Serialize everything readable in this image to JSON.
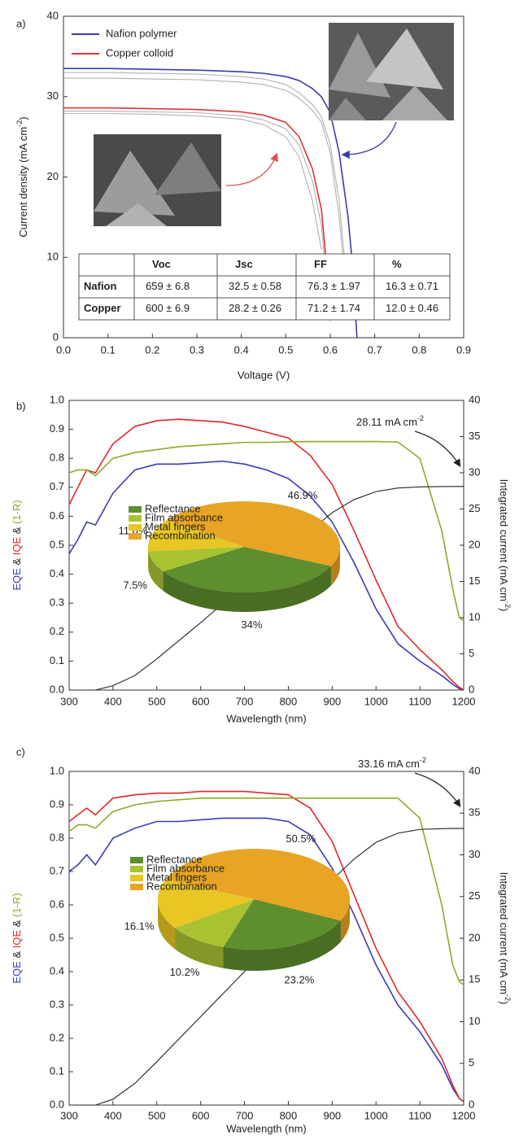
{
  "chart_data": [
    {
      "type": "line",
      "panel_label": "a)",
      "xlabel": "Voltage (V)",
      "ylabel": "Current density (mA cm",
      "ylabel_sup": "-2",
      "ylabel_end": ")",
      "x": [
        0,
        0.1,
        0.2,
        0.3,
        0.4,
        0.45,
        0.5,
        0.53,
        0.56,
        0.58,
        0.6,
        0.62,
        0.64,
        0.65,
        0.66
      ],
      "series": [
        {
          "color": "#b0b0b0",
          "values": [
            33,
            33,
            32.9,
            32.8,
            32.5,
            32.2,
            31.5,
            30.5,
            29,
            27.5,
            24,
            17,
            5,
            null,
            null
          ]
        },
        {
          "color": "#b0b0b0",
          "values": [
            32.3,
            32.3,
            32.2,
            32.1,
            31.8,
            31.5,
            30.8,
            29.8,
            28.3,
            26.8,
            23,
            15,
            3,
            null,
            null
          ]
        },
        {
          "color": "#b0b0b0",
          "values": [
            28.2,
            28.2,
            28.1,
            28,
            27.6,
            27.1,
            26,
            24,
            19.5,
            14,
            2,
            null,
            null,
            null,
            null
          ]
        },
        {
          "color": "#b0b0b0",
          "values": [
            27.9,
            27.9,
            27.8,
            27.6,
            27.2,
            26.5,
            25,
            22.5,
            17,
            11,
            null,
            null,
            null,
            null,
            null
          ]
        },
        {
          "name": "Nafion polymer",
          "color": "#3b3ba8",
          "values": [
            33.5,
            33.5,
            33.4,
            33.3,
            33.1,
            32.9,
            32.5,
            32,
            31,
            30,
            28,
            23,
            15,
            9,
            0
          ]
        },
        {
          "name": "Copper colloid",
          "color": "#e03434",
          "values": [
            28.6,
            28.6,
            28.5,
            28.4,
            28.1,
            27.7,
            26.8,
            25,
            21,
            16,
            4,
            null,
            null,
            null,
            null
          ]
        }
      ],
      "xlim": [
        0,
        0.9
      ],
      "xticks": [
        {
          "value": 0,
          "label": "0.0"
        },
        0.1,
        0.2,
        0.3,
        0.4,
        0.5,
        0.6,
        0.7,
        0.8,
        0.9
      ],
      "ylim": [
        0,
        40
      ],
      "yticks": [
        0,
        10,
        20,
        30,
        40
      ],
      "legend": "upper left",
      "table": {
        "columns": [
          "Voc",
          "Jsc",
          "FF",
          "%"
        ],
        "rows": [
          {
            "label": "Nafion",
            "cells": [
              "659 ± 6.8",
              "32.5 ± 0.58",
              "76.3 ± 1.97",
              "16.3 ± 0.71"
            ]
          },
          {
            "label": "Copper",
            "cells": [
              "600 ± 6.9",
              "28.2 ± 0.26",
              "71.2 ± 1.74",
              "12.0 ± 0.46"
            ]
          }
        ]
      }
    },
    {
      "type": "line",
      "panel_label": "b)",
      "xlabel": "Wavelength (nm)",
      "ylabel_sep": " & ",
      "y2label": "Integrated current (mA cm",
      "y2label_sup": "-2",
      "y2label_end": ")",
      "annotation": "28.11 mA cm",
      "annotation_sup": "-2",
      "x": [
        300,
        320,
        340,
        360,
        400,
        450,
        500,
        550,
        600,
        650,
        700,
        750,
        800,
        850,
        900,
        950,
        1000,
        1050,
        1100,
        1150,
        1175,
        1190,
        1200
      ],
      "series": [
        {
          "name": "EQE",
          "color": "#3b3bb8",
          "values": [
            0.47,
            0.52,
            0.58,
            0.57,
            0.68,
            0.76,
            0.78,
            0.78,
            0.785,
            0.79,
            0.78,
            0.76,
            0.73,
            0.67,
            0.58,
            0.44,
            0.28,
            0.16,
            0.1,
            0.05,
            0.02,
            0.005,
            0
          ]
        },
        {
          "name": "IQE",
          "color": "#e02828",
          "values": [
            0.64,
            0.7,
            0.76,
            0.75,
            0.85,
            0.91,
            0.93,
            0.935,
            0.93,
            0.925,
            0.91,
            0.89,
            0.87,
            0.81,
            0.71,
            0.55,
            0.38,
            0.22,
            0.14,
            0.07,
            0.03,
            0.01,
            0
          ]
        },
        {
          "name": "(1-R)",
          "color": "#8aac28",
          "values": [
            0.75,
            0.76,
            0.76,
            0.74,
            0.8,
            0.82,
            0.83,
            0.84,
            0.845,
            0.85,
            0.855,
            0.855,
            0.857,
            0.858,
            0.858,
            0.858,
            0.858,
            0.856,
            0.8,
            0.55,
            0.35,
            0.25,
            0.24
          ]
        },
        {
          "color": "#222222",
          "axis": "y2",
          "values": [
            0,
            0,
            0,
            0,
            0.6,
            2,
            4.3,
            6.8,
            9.3,
            11.9,
            14.5,
            17,
            19.5,
            22,
            24.5,
            26.3,
            27.4,
            27.9,
            28.05,
            28.1,
            28.11,
            28.11,
            28.11
          ]
        }
      ],
      "xlim": [
        300,
        1200
      ],
      "xticks": [
        300,
        400,
        500,
        600,
        700,
        800,
        900,
        1000,
        1100,
        1200
      ],
      "ylim": [
        0,
        1
      ],
      "yticks": [
        {
          "value": 0,
          "label": "0.0"
        },
        0.1,
        0.2,
        0.3,
        0.4,
        0.5,
        0.6,
        0.7,
        0.8,
        0.9,
        {
          "value": 1,
          "label": "1.0"
        }
      ],
      "y2lim": [
        0,
        40
      ],
      "y2ticks": [
        0,
        5,
        10,
        15,
        20,
        25,
        30,
        35,
        40
      ]
    },
    {
      "type": "pie",
      "categories": [
        "Reflectance",
        "Film absorbance",
        "Metal fingers",
        "Recombination"
      ],
      "values": [
        34,
        7.5,
        11.6,
        46.9
      ],
      "value_labels": [
        "34%",
        "7.5%",
        "11.6%",
        "46.9%"
      ],
      "colors": [
        "#5e8e2e",
        "#a9c232",
        "#e8c624",
        "#e8a424"
      ]
    },
    {
      "type": "line",
      "panel_label": "c)",
      "xlabel": "Wavelength (nm)",
      "ylabel_sep": " & ",
      "y2label": "Integrated current (mA cm",
      "y2label_sup": "-2",
      "y2label_end": ")",
      "annotation": "33.16 mA cm",
      "annotation_sup": "-2",
      "x": [
        300,
        320,
        340,
        360,
        400,
        450,
        500,
        550,
        600,
        650,
        700,
        750,
        800,
        850,
        900,
        950,
        1000,
        1050,
        1100,
        1150,
        1175,
        1190,
        1200
      ],
      "series": [
        {
          "name": "EQE",
          "color": "#3b3bb8",
          "values": [
            0.7,
            0.72,
            0.75,
            0.72,
            0.8,
            0.83,
            0.85,
            0.85,
            0.855,
            0.86,
            0.86,
            0.86,
            0.85,
            0.81,
            0.71,
            0.57,
            0.42,
            0.3,
            0.22,
            0.12,
            0.05,
            0.02,
            0.01
          ]
        },
        {
          "name": "IQE",
          "color": "#e02828",
          "values": [
            0.85,
            0.87,
            0.89,
            0.87,
            0.92,
            0.93,
            0.935,
            0.935,
            0.94,
            0.94,
            0.94,
            0.935,
            0.93,
            0.89,
            0.79,
            0.63,
            0.47,
            0.34,
            0.25,
            0.14,
            0.06,
            0.02,
            0.01
          ]
        },
        {
          "name": "(1-R)",
          "color": "#8aac28",
          "values": [
            0.82,
            0.84,
            0.84,
            0.83,
            0.88,
            0.9,
            0.91,
            0.915,
            0.92,
            0.92,
            0.92,
            0.92,
            0.92,
            0.92,
            0.92,
            0.92,
            0.92,
            0.92,
            0.86,
            0.6,
            0.42,
            0.37,
            0.36
          ]
        },
        {
          "color": "#222222",
          "axis": "y2",
          "values": [
            0,
            0,
            0,
            0,
            0.7,
            2.6,
            5.2,
            7.9,
            10.6,
            13.3,
            16,
            18.8,
            21.5,
            24.2,
            27,
            29.5,
            31.5,
            32.6,
            33.05,
            33.14,
            33.16,
            33.16,
            33.16
          ]
        }
      ],
      "xlim": [
        300,
        1200
      ],
      "xticks": [
        300,
        400,
        500,
        600,
        700,
        800,
        900,
        1000,
        1100,
        1200
      ],
      "ylim": [
        0,
        1
      ],
      "yticks": [
        {
          "value": 0,
          "label": "0.0"
        },
        0.1,
        0.2,
        0.3,
        0.4,
        0.5,
        0.6,
        0.7,
        0.8,
        0.9,
        {
          "value": 1,
          "label": "1.0"
        }
      ],
      "y2lim": [
        0,
        40
      ],
      "y2ticks": [
        0,
        5,
        10,
        15,
        20,
        25,
        30,
        35,
        40
      ]
    },
    {
      "type": "pie",
      "categories": [
        "Reflectance",
        "Film absorbance",
        "Metal fingers",
        "Recombination"
      ],
      "values": [
        23.2,
        10.2,
        16.1,
        50.5
      ],
      "value_labels": [
        "23.2%",
        "10.2%",
        "16.1%",
        "50.5%"
      ],
      "colors": [
        "#5e8e2e",
        "#a9c232",
        "#e8c624",
        "#e8a424"
      ]
    }
  ]
}
